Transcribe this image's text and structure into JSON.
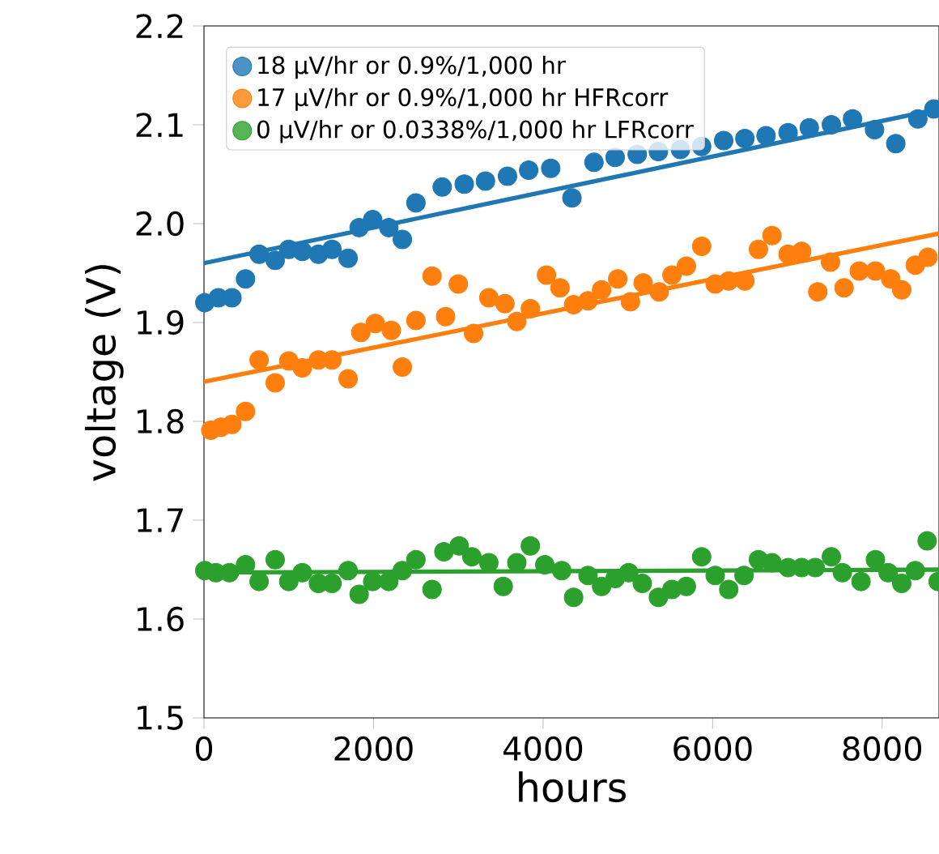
{
  "chart_data": {
    "type": "scatter",
    "xlabel": "hours",
    "ylabel": "voltage (V)",
    "xlim": [
      0,
      8670
    ],
    "ylim": [
      1.5,
      2.2
    ],
    "xticks": [
      0,
      2000,
      4000,
      6000,
      8000
    ],
    "yticks": [
      1.5,
      1.6,
      1.7,
      1.8,
      1.9,
      {
        "value": 2.0,
        "label": "2.0"
      },
      2.1,
      2.2
    ],
    "marker": "circle",
    "legend": "top left",
    "series": [
      {
        "name": "18 µV/hr or 0.9%/1,000 hr",
        "color": "#1f77b4",
        "x": [
          10,
          170,
          330,
          490,
          650,
          840,
          1000,
          1160,
          1350,
          1510,
          1700,
          1830,
          1990,
          2180,
          2340,
          2500,
          2810,
          3070,
          3320,
          3580,
          3830,
          4090,
          4340,
          4600,
          4850,
          5110,
          5360,
          5620,
          5870,
          6130,
          6380,
          6630,
          6890,
          7140,
          7400,
          7650,
          7910,
          8160,
          8420,
          8610
        ],
        "values": [
          1.92,
          1.925,
          1.925,
          1.944,
          1.969,
          1.963,
          1.974,
          1.972,
          1.969,
          1.974,
          1.965,
          1.996,
          2.004,
          1.996,
          1.984,
          2.021,
          2.037,
          2.04,
          2.043,
          2.048,
          2.054,
          2.056,
          2.026,
          2.062,
          2.067,
          2.07,
          2.073,
          2.075,
          2.078,
          2.084,
          2.086,
          2.089,
          2.092,
          2.097,
          2.1,
          2.106,
          2.095,
          2.081,
          2.106,
          2.116
        ]
      },
      {
        "name": "17 µV/hr or 0.9%/1,000 hr HFRcorr",
        "color": "#ff7f0e",
        "x": [
          80,
          200,
          330,
          490,
          650,
          840,
          1000,
          1160,
          1350,
          1510,
          1700,
          1850,
          2020,
          2210,
          2340,
          2500,
          2690,
          2850,
          3000,
          3180,
          3360,
          3550,
          3690,
          3850,
          4040,
          4200,
          4360,
          4530,
          4690,
          4880,
          5030,
          5180,
          5370,
          5520,
          5690,
          5870,
          6030,
          6190,
          6380,
          6540,
          6700,
          6890,
          7050,
          7240,
          7390,
          7550,
          7730,
          7920,
          8100,
          8230,
          8390,
          8540
        ],
        "values": [
          1.791,
          1.794,
          1.797,
          1.81,
          1.862,
          1.839,
          1.861,
          1.854,
          1.862,
          1.862,
          1.843,
          1.89,
          1.899,
          1.892,
          1.855,
          1.902,
          1.947,
          1.906,
          1.939,
          1.889,
          1.925,
          1.919,
          1.901,
          1.914,
          1.948,
          1.935,
          1.918,
          1.922,
          1.933,
          1.944,
          1.921,
          1.94,
          1.931,
          1.948,
          1.957,
          1.977,
          1.939,
          1.942,
          1.942,
          1.974,
          1.988,
          1.969,
          1.972,
          1.931,
          1.961,
          1.935,
          1.952,
          1.952,
          1.944,
          1.933,
          1.958,
          1.966
        ]
      },
      {
        "name": "0 µV/hr or 0.0338%/1,000 hr LFRcorr",
        "color": "#2ca02c",
        "x": [
          10,
          140,
          300,
          490,
          650,
          840,
          1000,
          1160,
          1350,
          1510,
          1700,
          1830,
          1990,
          2180,
          2340,
          2500,
          2690,
          2830,
          3010,
          3160,
          3360,
          3530,
          3690,
          3850,
          4020,
          4220,
          4360,
          4530,
          4690,
          4850,
          5010,
          5170,
          5360,
          5520,
          5690,
          5870,
          6030,
          6190,
          6370,
          6540,
          6700,
          6890,
          7050,
          7210,
          7400,
          7530,
          7750,
          7920,
          8070,
          8230,
          8390,
          8530,
          8660
        ],
        "values": [
          1.649,
          1.647,
          1.647,
          1.655,
          1.638,
          1.66,
          1.638,
          1.647,
          1.636,
          1.636,
          1.649,
          1.625,
          1.638,
          1.638,
          1.649,
          1.66,
          1.63,
          1.668,
          1.674,
          1.663,
          1.657,
          1.633,
          1.657,
          1.674,
          1.655,
          1.649,
          1.622,
          1.644,
          1.633,
          1.641,
          1.647,
          1.636,
          1.622,
          1.63,
          1.633,
          1.663,
          1.644,
          1.63,
          1.644,
          1.66,
          1.657,
          1.652,
          1.652,
          1.652,
          1.663,
          1.647,
          1.638,
          1.66,
          1.647,
          1.636,
          1.649,
          1.679,
          1.638
        ]
      },
      {
        "type": "line",
        "marker": "none",
        "color": "#1f77b4",
        "x": [
          0,
          8670
        ],
        "values": [
          1.96,
          2.116
        ]
      },
      {
        "type": "line",
        "marker": "none",
        "color": "#ff7f0e",
        "x": [
          0,
          8670
        ],
        "values": [
          1.84,
          1.99
        ]
      },
      {
        "type": "line",
        "marker": "none",
        "color": "#2ca02c",
        "x": [
          0,
          8670
        ],
        "values": [
          1.647,
          1.65
        ]
      }
    ]
  }
}
